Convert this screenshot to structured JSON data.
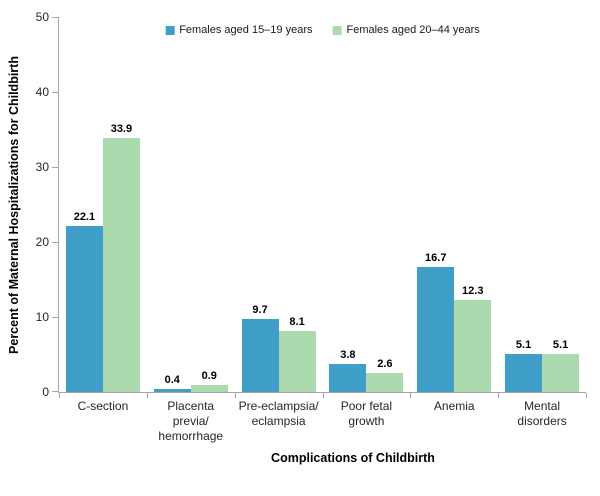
{
  "chart_data": {
    "type": "bar",
    "title": "",
    "xlabel": "Complications of Childbirth",
    "ylabel": "Percent of Maternal Hospitalizations for Childbirth",
    "ylim": [
      0,
      50
    ],
    "yticks": [
      0,
      10,
      20,
      30,
      40,
      50
    ],
    "grid": false,
    "legend_position": "top-center",
    "categories": [
      "C-section",
      "Placenta\nprevia/\nhemorrhage",
      "Pre-eclampsia/\neclampsia",
      "Poor fetal\ngrowth",
      "Anemia",
      "Mental\ndisorders"
    ],
    "series": [
      {
        "name": "Females aged 15–19 years",
        "color": "#3F9FC9",
        "values": [
          22.1,
          0.4,
          9.7,
          3.8,
          16.7,
          5.1
        ]
      },
      {
        "name": "Females aged 20–44 years",
        "color": "#ABDAAF",
        "values": [
          33.9,
          0.9,
          8.1,
          2.6,
          12.3,
          5.1
        ]
      }
    ]
  },
  "colors": {
    "axis": "#a6a6a6",
    "label_text": "#262626",
    "title_text": "#000000",
    "background": "#ffffff"
  }
}
